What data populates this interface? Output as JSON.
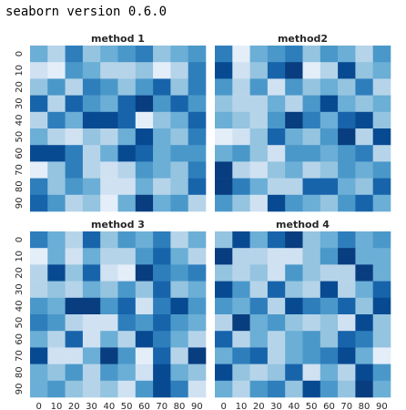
{
  "title": "seaborn version 0.6.0",
  "chart_data": [
    {
      "type": "heatmap",
      "title": "method 1",
      "cmap": "Blues",
      "y": [
        0,
        10,
        20,
        30,
        40,
        50,
        60,
        70,
        80,
        90
      ],
      "values": [
        [
          0.5,
          0.3,
          0.7,
          0.4,
          0.5,
          0.6,
          0.7,
          0.4,
          0.5,
          0.6
        ],
        [
          0.2,
          0.1,
          0.6,
          0.5,
          0.3,
          0.3,
          0.4,
          0.1,
          0.3,
          0.7
        ],
        [
          0.4,
          0.6,
          0.3,
          0.7,
          0.6,
          0.4,
          0.6,
          0.8,
          0.4,
          0.7
        ],
        [
          0.8,
          0.3,
          0.8,
          0.6,
          0.5,
          0.8,
          0.95,
          0.6,
          0.8,
          0.6
        ],
        [
          0.3,
          0.7,
          0.5,
          0.9,
          0.9,
          0.8,
          0.1,
          0.4,
          0.5,
          0.8
        ],
        [
          0.5,
          0.3,
          0.2,
          0.4,
          0.3,
          0.5,
          0.9,
          0.5,
          0.4,
          0.7
        ],
        [
          0.9,
          0.9,
          0.7,
          0.3,
          0.5,
          0.9,
          0.8,
          0.5,
          0.6,
          0.6
        ],
        [
          0.1,
          0.4,
          0.7,
          0.3,
          0.2,
          0.3,
          0.6,
          0.5,
          0.4,
          0.7
        ],
        [
          0.7,
          0.4,
          0.6,
          0.5,
          0.2,
          0.2,
          0.5,
          0.3,
          0.4,
          0.8
        ],
        [
          0.8,
          0.6,
          0.3,
          0.4,
          0.1,
          0.5,
          0.95,
          0.5,
          0.6,
          0.3
        ]
      ]
    },
    {
      "type": "heatmap",
      "title": "method2",
      "cmap": "Blues",
      "values": [
        [
          0.7,
          0.1,
          0.5,
          0.6,
          0.7,
          0.4,
          0.6,
          0.5,
          0.3,
          0.6
        ],
        [
          0.9,
          0.2,
          0.4,
          0.8,
          0.95,
          0.1,
          0.3,
          0.9,
          0.4,
          0.5
        ],
        [
          0.6,
          0.3,
          0.6,
          0.2,
          0.6,
          0.4,
          0.5,
          0.4,
          0.7,
          0.3
        ],
        [
          0.4,
          0.3,
          0.3,
          0.5,
          0.3,
          0.6,
          0.9,
          0.5,
          0.4,
          0.5
        ],
        [
          0.5,
          0.4,
          0.3,
          0.6,
          0.95,
          0.7,
          0.5,
          0.8,
          0.9,
          0.4
        ],
        [
          0.1,
          0.2,
          0.4,
          0.8,
          0.5,
          0.4,
          0.6,
          0.95,
          0.3,
          0.9
        ],
        [
          0.5,
          0.6,
          0.4,
          0.2,
          0.6,
          0.6,
          0.5,
          0.6,
          0.7,
          0.3
        ],
        [
          0.95,
          0.3,
          0.2,
          0.4,
          0.5,
          0.3,
          0.4,
          0.6,
          0.5,
          0.6
        ],
        [
          0.95,
          0.7,
          0.5,
          0.3,
          0.3,
          0.8,
          0.8,
          0.5,
          0.4,
          0.8
        ],
        [
          0.6,
          0.4,
          0.2,
          0.9,
          0.6,
          0.5,
          0.4,
          0.6,
          0.8,
          0.5
        ]
      ]
    },
    {
      "type": "heatmap",
      "title": "method 3",
      "cmap": "Blues",
      "x": [
        0,
        10,
        20,
        30,
        40,
        50,
        60,
        70,
        80,
        90
      ],
      "y": [
        0,
        10,
        20,
        30,
        40,
        50,
        60,
        70,
        80,
        90
      ],
      "values": [
        [
          0.7,
          0.5,
          0.3,
          0.8,
          0.4,
          0.6,
          0.5,
          0.7,
          0.3,
          0.5
        ],
        [
          0.1,
          0.5,
          0.2,
          0.5,
          0.3,
          0.3,
          0.6,
          0.8,
          0.5,
          0.3
        ],
        [
          0.3,
          0.9,
          0.4,
          0.8,
          0.2,
          0.1,
          0.95,
          0.7,
          0.6,
          0.7
        ],
        [
          0.3,
          0.4,
          0.3,
          0.5,
          0.4,
          0.6,
          0.4,
          0.8,
          0.4,
          0.5
        ],
        [
          0.6,
          0.5,
          0.95,
          0.95,
          0.6,
          0.8,
          0.2,
          0.7,
          0.9,
          0.6
        ],
        [
          0.7,
          0.6,
          0.3,
          0.2,
          0.2,
          0.7,
          0.6,
          0.8,
          0.6,
          0.5
        ],
        [
          0.5,
          0.3,
          0.8,
          0.2,
          0.5,
          0.3,
          0.9,
          0.7,
          0.5,
          0.3
        ],
        [
          0.9,
          0.2,
          0.2,
          0.5,
          0.95,
          0.6,
          0.1,
          0.8,
          0.3,
          0.95
        ],
        [
          0.5,
          0.4,
          0.6,
          0.3,
          0.6,
          0.5,
          0.2,
          0.9,
          0.5,
          0.4
        ],
        [
          0.5,
          0.6,
          0.4,
          0.3,
          0.4,
          0.2,
          0.6,
          0.9,
          0.7,
          0.2
        ]
      ]
    },
    {
      "type": "heatmap",
      "title": "method 4",
      "cmap": "Blues",
      "x": [
        0,
        10,
        20,
        30,
        40,
        50,
        60,
        70,
        80,
        90
      ],
      "values": [
        [
          0.4,
          0.9,
          0.5,
          0.8,
          0.95,
          0.4,
          0.5,
          0.7,
          0.5,
          0.6
        ],
        [
          0.95,
          0.3,
          0.3,
          0.2,
          0.2,
          0.4,
          0.6,
          0.95,
          0.5,
          0.5
        ],
        [
          0.4,
          0.3,
          0.4,
          0.2,
          0.6,
          0.4,
          0.3,
          0.3,
          0.95,
          0.5
        ],
        [
          0.9,
          0.6,
          0.3,
          0.8,
          0.4,
          0.3,
          0.9,
          0.3,
          0.5,
          0.8
        ],
        [
          0.6,
          0.5,
          0.7,
          0.3,
          0.9,
          0.7,
          0.6,
          0.8,
          0.4,
          0.9
        ],
        [
          0.3,
          0.95,
          0.5,
          0.6,
          0.4,
          0.3,
          0.4,
          0.2,
          0.9,
          0.4
        ],
        [
          0.8,
          0.3,
          0.5,
          0.3,
          0.5,
          0.6,
          0.4,
          0.8,
          0.7,
          0.4
        ],
        [
          0.5,
          0.7,
          0.8,
          0.3,
          0.5,
          0.6,
          0.7,
          0.9,
          0.5,
          0.1
        ],
        [
          0.9,
          0.4,
          0.3,
          0.4,
          0.8,
          0.2,
          0.5,
          0.3,
          0.9,
          0.6
        ],
        [
          0.5,
          0.3,
          0.6,
          0.7,
          0.4,
          0.9,
          0.6,
          0.4,
          0.95,
          0.5
        ]
      ]
    }
  ]
}
